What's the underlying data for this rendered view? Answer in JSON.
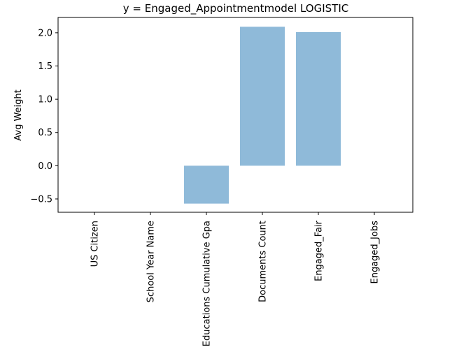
{
  "chart_data": {
    "type": "bar",
    "title": "y = Engaged_Appointmentmodel LOGISTIC",
    "xlabel": "",
    "ylabel": "Avg Weight",
    "categories": [
      "US Citizen",
      "School Year Name",
      "Educations Cumulative Gpa",
      "Documents Count",
      "Engaged_Fair",
      "Engaged_Jobs"
    ],
    "values": [
      0.0,
      0.0,
      -0.57,
      2.09,
      2.01,
      0.0
    ],
    "ylim": [
      -0.7,
      2.23
    ],
    "yticks": [
      -0.5,
      0.0,
      0.5,
      1.0,
      1.5,
      2.0
    ],
    "ytick_labels": [
      "−0.5",
      "0.0",
      "0.5",
      "1.0",
      "1.5",
      "2.0"
    ],
    "bar_color": "#8fbad9",
    "grid": false,
    "legend": "none"
  }
}
